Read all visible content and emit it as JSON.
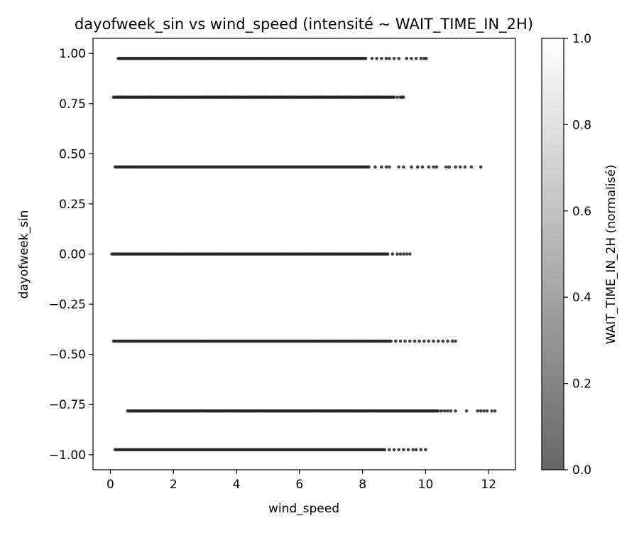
{
  "chart_data": {
    "type": "scatter",
    "title": "dayofweek_sin vs wind_speed (intensité ~ WAIT_TIME_IN_2H)",
    "xlabel": "wind_speed",
    "ylabel": "dayofweek_sin",
    "xlim": [
      -0.55,
      12.85
    ],
    "ylim": [
      -1.075,
      1.075
    ],
    "xticks": [
      0,
      2,
      4,
      6,
      8,
      10,
      12
    ],
    "xtick_labels": [
      "0",
      "2",
      "4",
      "6",
      "8",
      "10",
      "12"
    ],
    "yticks": [
      1.0,
      0.75,
      0.5,
      0.25,
      0.0,
      -0.25,
      -0.5,
      -0.75,
      -1.0
    ],
    "ytick_labels": [
      "1.00",
      "0.75",
      "0.50",
      "0.25",
      "0.00",
      "−0.25",
      "−0.50",
      "−0.75",
      "−1.00"
    ],
    "grid": false,
    "colorbar": {
      "label": "WAIT_TIME_IN_2H (normalisé)",
      "range": [
        0.0,
        1.0
      ],
      "ticks": [
        0.0,
        0.2,
        0.4,
        0.6,
        0.8,
        1.0
      ],
      "tick_labels": [
        "0.0",
        "0.2",
        "0.4",
        "0.6",
        "0.8",
        "1.0"
      ],
      "colormap": "gray",
      "color_low": "#666666",
      "color_high": "#ffffff"
    },
    "point_color": "#1e1e1e",
    "rows": [
      {
        "y": 0.975,
        "dense_range": [
          0.25,
          8.1
        ],
        "sparse_x": [
          8.3,
          8.45,
          8.6,
          8.75,
          8.85,
          9.0,
          9.15,
          9.4,
          9.55,
          9.7,
          9.85,
          9.95,
          10.02
        ]
      },
      {
        "y": 0.782,
        "dense_range": [
          0.1,
          9.0
        ],
        "sparse_x": [
          9.1,
          9.2,
          9.25,
          9.3
        ]
      },
      {
        "y": 0.434,
        "dense_range": [
          0.15,
          8.2
        ],
        "sparse_x": [
          8.4,
          8.6,
          8.75,
          8.85,
          9.15,
          9.3,
          9.55,
          9.75,
          9.9,
          10.1,
          10.25,
          10.35,
          10.65,
          10.75,
          10.95,
          11.1,
          11.25,
          11.45,
          11.75
        ]
      },
      {
        "y": 0.0,
        "dense_range": [
          0.05,
          8.8
        ],
        "sparse_x": [
          8.95,
          9.1,
          9.2,
          9.3,
          9.4,
          9.5
        ]
      },
      {
        "y": -0.434,
        "dense_range": [
          0.1,
          8.9
        ],
        "sparse_x": [
          9.05,
          9.2,
          9.35,
          9.5,
          9.65,
          9.8,
          9.95,
          10.1,
          10.25,
          10.4,
          10.55,
          10.7,
          10.85,
          10.95
        ]
      },
      {
        "y": -0.782,
        "dense_range": [
          0.55,
          10.4
        ],
        "sparse_x": [
          10.5,
          10.6,
          10.7,
          10.8,
          10.95,
          11.3,
          11.65,
          11.75,
          11.85,
          11.95,
          12.1,
          12.2
        ]
      },
      {
        "y": -0.975,
        "dense_range": [
          0.15,
          8.7
        ],
        "sparse_x": [
          8.85,
          9.0,
          9.15,
          9.3,
          9.45,
          9.6,
          9.7,
          9.85,
          10.0
        ]
      }
    ]
  }
}
